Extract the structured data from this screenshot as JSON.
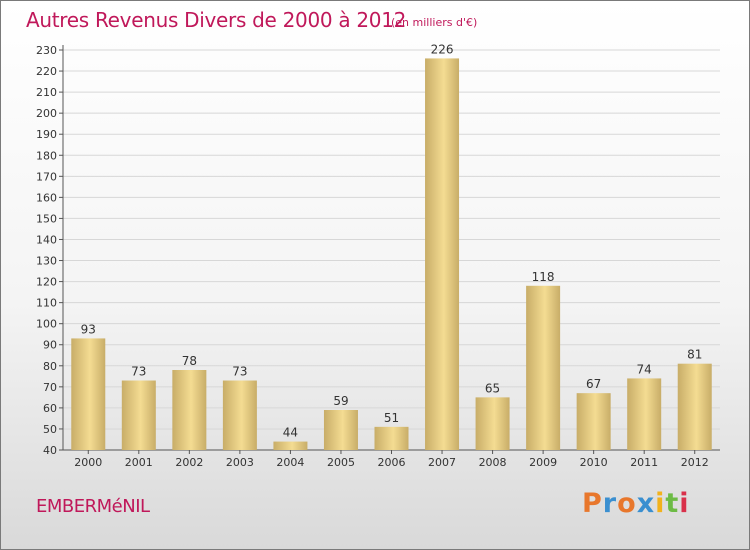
{
  "title": "Autres Revenus Divers de 2000 à 2012",
  "subtitle": "(en milliers d'€)",
  "commune": "EMBERMéNIL",
  "brand": {
    "letters": [
      "P",
      "r",
      "o",
      "x",
      "i",
      "t",
      "i"
    ],
    "colors": [
      "#e8772c",
      "#3a8fd0",
      "#e8772c",
      "#3a8fd0",
      "#f2b21c",
      "#6dbb45",
      "#d9304a"
    ]
  },
  "colors": {
    "title": "#c0185a",
    "bar_light": "#f4dc92",
    "bar_dark": "#c8ad68",
    "grid": "#d7d7d7"
  },
  "chart_data": {
    "type": "bar",
    "categories": [
      "2000",
      "2001",
      "2002",
      "2003",
      "2004",
      "2005",
      "2006",
      "2007",
      "2008",
      "2009",
      "2010",
      "2011",
      "2012"
    ],
    "values": [
      93,
      73,
      78,
      73,
      44,
      59,
      51,
      226,
      65,
      118,
      67,
      74,
      81
    ],
    "ylim": [
      40,
      230
    ],
    "yticks": [
      40,
      50,
      60,
      70,
      80,
      90,
      100,
      110,
      120,
      130,
      140,
      150,
      160,
      170,
      180,
      190,
      200,
      210,
      220,
      230
    ],
    "grid": true,
    "data_labels": true
  }
}
